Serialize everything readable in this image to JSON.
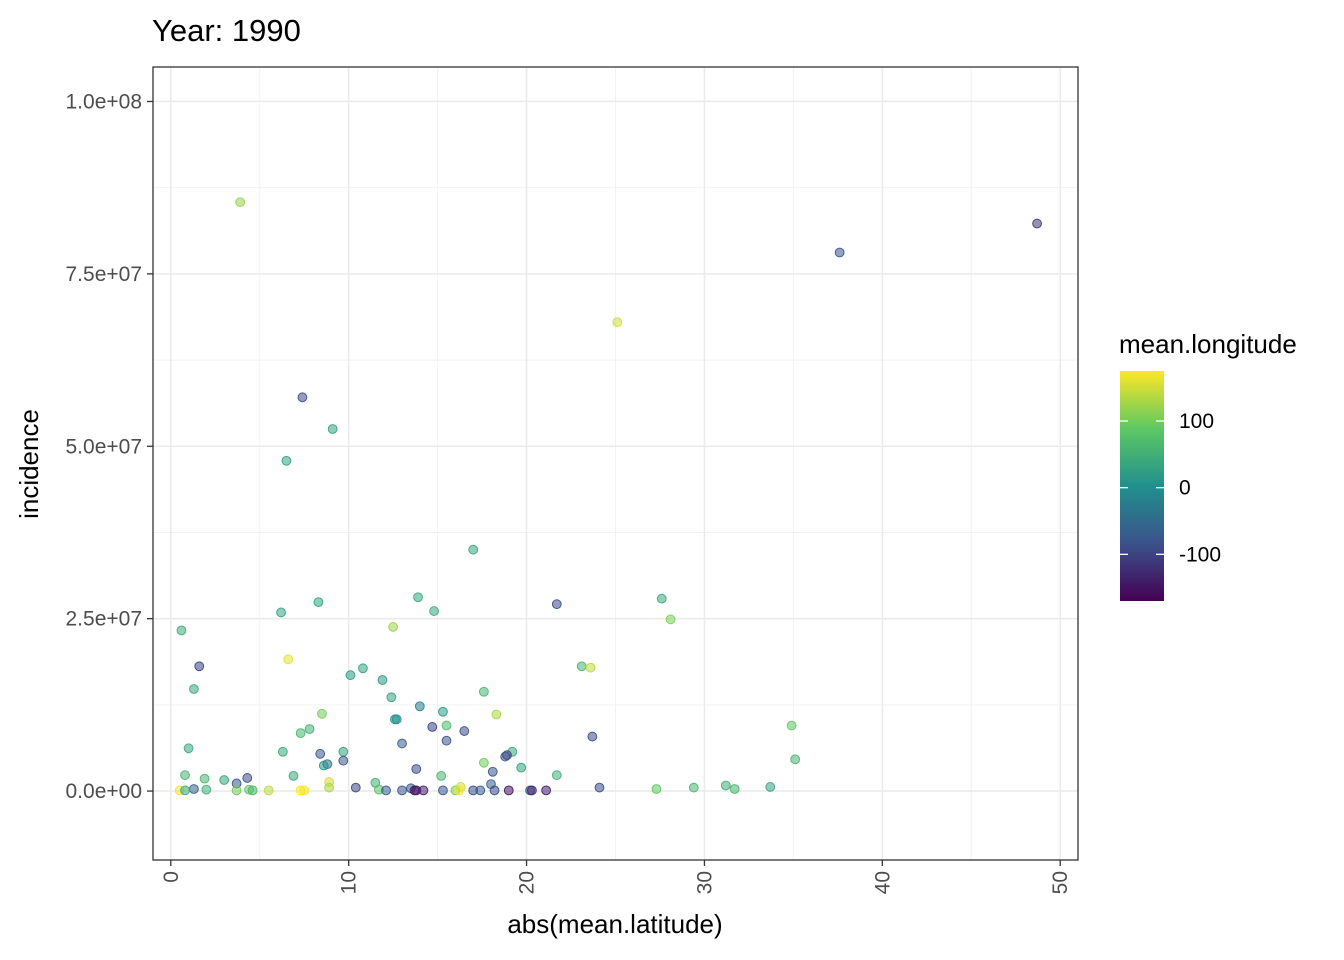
{
  "chart_data": {
    "type": "scatter",
    "title": "Year: 1990",
    "xlabel": "abs(mean.latitude)",
    "ylabel": "incidence",
    "xlim": [
      -1,
      51
    ],
    "ylim": [
      -10000000,
      105000000
    ],
    "x_ticks": [
      0,
      10,
      20,
      30,
      40,
      50
    ],
    "x_tick_labels": [
      "0",
      "10",
      "20",
      "30",
      "40",
      "50"
    ],
    "y_ticks": [
      0,
      25000000,
      50000000,
      75000000,
      100000000
    ],
    "y_tick_labels": [
      "0.0e+00",
      "2.5e+07",
      "5.0e+07",
      "7.5e+07",
      "1.0e+08"
    ],
    "grid": true,
    "point_opacity": 0.55,
    "legend": {
      "title": "mean.longitude",
      "position": "right",
      "range": [
        -170,
        175
      ],
      "ticks": [
        100,
        0,
        -100
      ],
      "tick_labels": [
        "100",
        "0",
        "-100"
      ],
      "palette": [
        "#440154",
        "#3b528b",
        "#21908d",
        "#5dc863",
        "#fde725"
      ]
    },
    "points": [
      {
        "x": 3.9,
        "y": 85400000,
        "c": 120
      },
      {
        "x": 48.7,
        "y": 82300000,
        "c": -110
      },
      {
        "x": 37.6,
        "y": 78100000,
        "c": -80
      },
      {
        "x": 25.1,
        "y": 68000000,
        "c": 150
      },
      {
        "x": 7.4,
        "y": 57100000,
        "c": -90
      },
      {
        "x": 9.1,
        "y": 52500000,
        "c": 30
      },
      {
        "x": 6.5,
        "y": 47900000,
        "c": 30
      },
      {
        "x": 17.0,
        "y": 35000000,
        "c": 35
      },
      {
        "x": 13.9,
        "y": 28100000,
        "c": 40
      },
      {
        "x": 27.6,
        "y": 27900000,
        "c": 40
      },
      {
        "x": 8.3,
        "y": 27400000,
        "c": 30
      },
      {
        "x": 21.7,
        "y": 27100000,
        "c": -90
      },
      {
        "x": 6.2,
        "y": 25900000,
        "c": 30
      },
      {
        "x": 14.8,
        "y": 26100000,
        "c": 40
      },
      {
        "x": 28.1,
        "y": 24900000,
        "c": 105
      },
      {
        "x": 12.5,
        "y": 23800000,
        "c": 120
      },
      {
        "x": 0.6,
        "y": 23300000,
        "c": 45
      },
      {
        "x": 6.6,
        "y": 19100000,
        "c": 160
      },
      {
        "x": 1.6,
        "y": 18100000,
        "c": -100
      },
      {
        "x": 23.1,
        "y": 18100000,
        "c": 60
      },
      {
        "x": 23.6,
        "y": 17900000,
        "c": 140
      },
      {
        "x": 10.8,
        "y": 17800000,
        "c": 30
      },
      {
        "x": 10.1,
        "y": 16800000,
        "c": 20
      },
      {
        "x": 11.9,
        "y": 16100000,
        "c": 20
      },
      {
        "x": 1.3,
        "y": 14800000,
        "c": 40
      },
      {
        "x": 17.6,
        "y": 14400000,
        "c": 60
      },
      {
        "x": 12.4,
        "y": 13600000,
        "c": 30
      },
      {
        "x": 14.0,
        "y": 12300000,
        "c": -20
      },
      {
        "x": 15.3,
        "y": 11500000,
        "c": 20
      },
      {
        "x": 8.5,
        "y": 11200000,
        "c": 100
      },
      {
        "x": 18.3,
        "y": 11100000,
        "c": 130
      },
      {
        "x": 12.6,
        "y": 10400000,
        "c": 10
      },
      {
        "x": 12.7,
        "y": 10400000,
        "c": 0
      },
      {
        "x": 34.9,
        "y": 9500000,
        "c": 90
      },
      {
        "x": 15.5,
        "y": 9500000,
        "c": 70
      },
      {
        "x": 14.7,
        "y": 9300000,
        "c": -100
      },
      {
        "x": 7.8,
        "y": 9000000,
        "c": 50
      },
      {
        "x": 16.5,
        "y": 8700000,
        "c": -90
      },
      {
        "x": 7.3,
        "y": 8400000,
        "c": 60
      },
      {
        "x": 23.7,
        "y": 7900000,
        "c": -90
      },
      {
        "x": 15.5,
        "y": 7300000,
        "c": -80
      },
      {
        "x": 13.0,
        "y": 6900000,
        "c": -70
      },
      {
        "x": 1.0,
        "y": 6200000,
        "c": 40
      },
      {
        "x": 6.3,
        "y": 5700000,
        "c": 40
      },
      {
        "x": 9.7,
        "y": 5700000,
        "c": 30
      },
      {
        "x": 19.2,
        "y": 5700000,
        "c": 40
      },
      {
        "x": 8.4,
        "y": 5400000,
        "c": -80
      },
      {
        "x": 18.9,
        "y": 5200000,
        "c": -100
      },
      {
        "x": 18.8,
        "y": 5000000,
        "c": -80
      },
      {
        "x": 35.1,
        "y": 4600000,
        "c": 60
      },
      {
        "x": 9.7,
        "y": 4400000,
        "c": -80
      },
      {
        "x": 17.6,
        "y": 4100000,
        "c": 100
      },
      {
        "x": 8.8,
        "y": 3900000,
        "c": -40
      },
      {
        "x": 8.6,
        "y": 3700000,
        "c": 10
      },
      {
        "x": 19.7,
        "y": 3400000,
        "c": 30
      },
      {
        "x": 13.8,
        "y": 3200000,
        "c": -90
      },
      {
        "x": 18.1,
        "y": 2800000,
        "c": -80
      },
      {
        "x": 0.8,
        "y": 2300000,
        "c": 60
      },
      {
        "x": 21.7,
        "y": 2300000,
        "c": 50
      },
      {
        "x": 6.9,
        "y": 2200000,
        "c": 40
      },
      {
        "x": 15.2,
        "y": 2200000,
        "c": 60
      },
      {
        "x": 4.3,
        "y": 1900000,
        "c": -90
      },
      {
        "x": 1.9,
        "y": 1800000,
        "c": 60
      },
      {
        "x": 3.0,
        "y": 1600000,
        "c": 40
      },
      {
        "x": 8.9,
        "y": 1300000,
        "c": 150
      },
      {
        "x": 11.5,
        "y": 1200000,
        "c": 50
      },
      {
        "x": 3.7,
        "y": 1100000,
        "c": -80
      },
      {
        "x": 18.0,
        "y": 1000000,
        "c": -60
      },
      {
        "x": 31.2,
        "y": 800000,
        "c": 50
      },
      {
        "x": 33.7,
        "y": 600000,
        "c": 30
      },
      {
        "x": 16.3,
        "y": 600000,
        "c": 150
      },
      {
        "x": 10.4,
        "y": 500000,
        "c": -100
      },
      {
        "x": 24.1,
        "y": 500000,
        "c": -90
      },
      {
        "x": 29.4,
        "y": 500000,
        "c": 60
      },
      {
        "x": 8.9,
        "y": 500000,
        "c": 130
      },
      {
        "x": 13.5,
        "y": 400000,
        "c": -80
      },
      {
        "x": 1.3,
        "y": 300000,
        "c": -60
      },
      {
        "x": 27.3,
        "y": 300000,
        "c": 90
      },
      {
        "x": 31.7,
        "y": 300000,
        "c": 60
      },
      {
        "x": 2.0,
        "y": 200000,
        "c": 50
      },
      {
        "x": 4.4,
        "y": 200000,
        "c": 90
      },
      {
        "x": 11.7,
        "y": 200000,
        "c": 80
      },
      {
        "x": 0.5,
        "y": 100000,
        "c": 170
      },
      {
        "x": 0.8,
        "y": 100000,
        "c": 40
      },
      {
        "x": 3.7,
        "y": 100000,
        "c": 100
      },
      {
        "x": 4.6,
        "y": 100000,
        "c": 60
      },
      {
        "x": 5.5,
        "y": 100000,
        "c": 140
      },
      {
        "x": 7.3,
        "y": 100000,
        "c": 175
      },
      {
        "x": 7.5,
        "y": 100000,
        "c": 170
      },
      {
        "x": 12.1,
        "y": 100000,
        "c": -70
      },
      {
        "x": 13.0,
        "y": 100000,
        "c": -80
      },
      {
        "x": 13.7,
        "y": 100000,
        "c": -140
      },
      {
        "x": 13.8,
        "y": 100000,
        "c": -150
      },
      {
        "x": 14.2,
        "y": 100000,
        "c": -140
      },
      {
        "x": 15.3,
        "y": 100000,
        "c": -80
      },
      {
        "x": 16.0,
        "y": 100000,
        "c": 100
      },
      {
        "x": 16.2,
        "y": 100000,
        "c": 170
      },
      {
        "x": 17.0,
        "y": 100000,
        "c": -90
      },
      {
        "x": 17.4,
        "y": 100000,
        "c": -70
      },
      {
        "x": 18.2,
        "y": 100000,
        "c": -90
      },
      {
        "x": 19.0,
        "y": 100000,
        "c": -150
      },
      {
        "x": 20.2,
        "y": 100000,
        "c": -90
      },
      {
        "x": 20.3,
        "y": 100000,
        "c": -130
      },
      {
        "x": 21.1,
        "y": 100000,
        "c": -140
      }
    ]
  }
}
